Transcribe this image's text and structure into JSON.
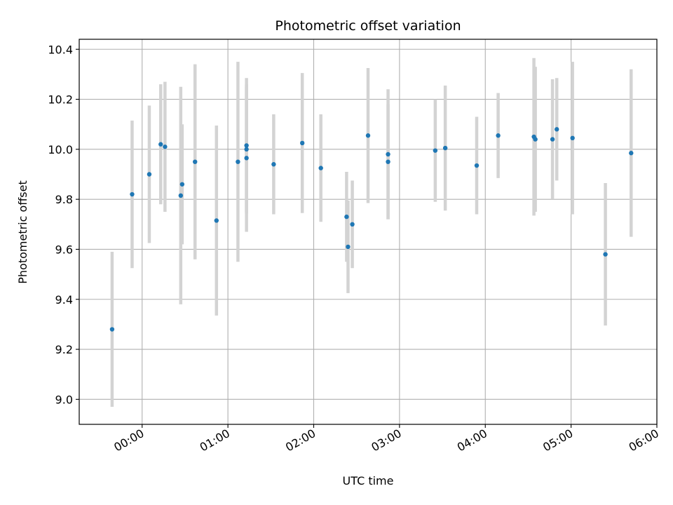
{
  "chart_data": {
    "type": "scatter",
    "title": "Photometric offset variation",
    "xlabel": "UTC time",
    "ylabel": "Photometric offset",
    "x_unit": "UTC time (HH:MM)",
    "xlim": [
      "23:16",
      "06:00"
    ],
    "ylim": [
      8.9,
      10.44
    ],
    "grid": true,
    "x_ticks": [
      "00:00",
      "01:00",
      "02:00",
      "03:00",
      "04:00",
      "05:00",
      "06:00"
    ],
    "y_ticks": [
      9.0,
      9.2,
      9.4,
      9.6,
      9.8,
      10.0,
      10.2,
      10.4
    ],
    "y_tick_labels": [
      "9.0",
      "9.2",
      "9.4",
      "9.6",
      "9.8",
      "10.0",
      "10.2",
      "10.4"
    ],
    "point_color": "#1f77b4",
    "errorbar_color": "#d3d3d3",
    "grid_color": "#b0b0b0",
    "points": [
      {
        "x": "23:39",
        "y": 9.28,
        "err": 0.31
      },
      {
        "x": "23:53",
        "y": 9.82,
        "err": 0.295
      },
      {
        "x": "00:05",
        "y": 9.9,
        "err": 0.275
      },
      {
        "x": "00:13",
        "y": 10.02,
        "err": 0.24
      },
      {
        "x": "00:16",
        "y": 10.01,
        "err": 0.26
      },
      {
        "x": "00:27",
        "y": 9.815,
        "err": 0.435
      },
      {
        "x": "00:28",
        "y": 9.86,
        "err": 0.24
      },
      {
        "x": "00:37",
        "y": 9.95,
        "err": 0.39
      },
      {
        "x": "00:52",
        "y": 9.715,
        "err": 0.38
      },
      {
        "x": "01:07",
        "y": 9.95,
        "err": 0.4
      },
      {
        "x": "01:13",
        "y": 10.015,
        "err": 0.27
      },
      {
        "x": "01:13",
        "y": 10.0,
        "err": 0.25
      },
      {
        "x": "01:13",
        "y": 9.965,
        "err": 0.295
      },
      {
        "x": "01:32",
        "y": 9.94,
        "err": 0.2
      },
      {
        "x": "01:52",
        "y": 10.025,
        "err": 0.28
      },
      {
        "x": "02:05",
        "y": 9.925,
        "err": 0.215
      },
      {
        "x": "02:23",
        "y": 9.73,
        "err": 0.18
      },
      {
        "x": "02:24",
        "y": 9.61,
        "err": 0.185
      },
      {
        "x": "02:27",
        "y": 9.7,
        "err": 0.175
      },
      {
        "x": "02:38",
        "y": 10.055,
        "err": 0.27
      },
      {
        "x": "02:52",
        "y": 9.98,
        "err": 0.26
      },
      {
        "x": "02:52",
        "y": 9.95,
        "err": 0.23
      },
      {
        "x": "03:25",
        "y": 9.995,
        "err": 0.205
      },
      {
        "x": "03:32",
        "y": 10.005,
        "err": 0.25
      },
      {
        "x": "03:54",
        "y": 9.935,
        "err": 0.195
      },
      {
        "x": "04:09",
        "y": 10.055,
        "err": 0.17
      },
      {
        "x": "04:34",
        "y": 10.05,
        "err": 0.315
      },
      {
        "x": "04:35",
        "y": 10.04,
        "err": 0.29
      },
      {
        "x": "04:47",
        "y": 10.04,
        "err": 0.24
      },
      {
        "x": "04:50",
        "y": 10.08,
        "err": 0.205
      },
      {
        "x": "05:01",
        "y": 10.045,
        "err": 0.305
      },
      {
        "x": "05:24",
        "y": 9.58,
        "err": 0.285
      },
      {
        "x": "05:42",
        "y": 9.985,
        "err": 0.335
      }
    ]
  }
}
